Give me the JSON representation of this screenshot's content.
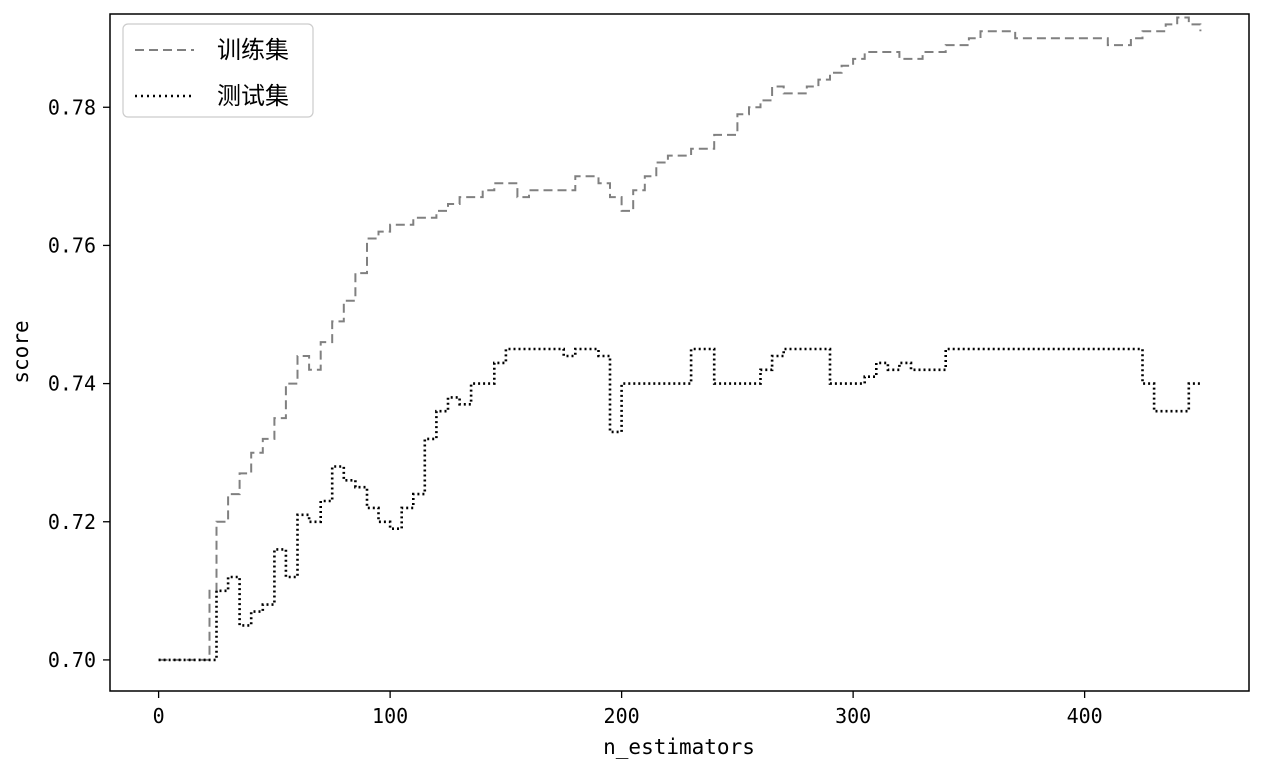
{
  "chart_data": {
    "type": "line",
    "xlabel": "n_estimators",
    "ylabel": "score",
    "xlim": [
      -21,
      471
    ],
    "ylim": [
      0.6955,
      0.7935
    ],
    "xticks": [
      0,
      100,
      200,
      300,
      400
    ],
    "yticks": [
      0.7,
      0.72,
      0.74,
      0.76,
      0.78
    ],
    "ytick_labels": [
      "0.70",
      "0.72",
      "0.74",
      "0.76",
      "0.78"
    ],
    "grid": false,
    "legend_position": "top-left",
    "series": [
      {
        "name": "训练集",
        "style": "dashed",
        "color": "#808080",
        "x": [
          0,
          10,
          19,
          22,
          25,
          30,
          35,
          40,
          45,
          50,
          55,
          60,
          65,
          70,
          75,
          80,
          85,
          90,
          95,
          100,
          110,
          120,
          125,
          130,
          135,
          140,
          145,
          150,
          155,
          160,
          170,
          180,
          185,
          190,
          195,
          200,
          205,
          210,
          215,
          220,
          225,
          230,
          240,
          250,
          255,
          260,
          265,
          270,
          275,
          280,
          285,
          290,
          295,
          300,
          305,
          310,
          315,
          320,
          325,
          330,
          335,
          340,
          345,
          350,
          355,
          360,
          370,
          380,
          390,
          400,
          405,
          410,
          420,
          425,
          430,
          435,
          440,
          445,
          450
        ],
        "y": [
          0.7,
          0.7,
          0.7,
          0.71,
          0.72,
          0.724,
          0.727,
          0.73,
          0.732,
          0.735,
          0.74,
          0.744,
          0.742,
          0.746,
          0.749,
          0.752,
          0.756,
          0.761,
          0.762,
          0.763,
          0.764,
          0.765,
          0.766,
          0.767,
          0.767,
          0.768,
          0.769,
          0.769,
          0.767,
          0.768,
          0.768,
          0.77,
          0.77,
          0.769,
          0.767,
          0.765,
          0.768,
          0.77,
          0.772,
          0.773,
          0.773,
          0.774,
          0.776,
          0.779,
          0.78,
          0.781,
          0.783,
          0.782,
          0.782,
          0.783,
          0.784,
          0.785,
          0.786,
          0.787,
          0.788,
          0.788,
          0.788,
          0.787,
          0.787,
          0.788,
          0.788,
          0.789,
          0.789,
          0.79,
          0.791,
          0.791,
          0.79,
          0.79,
          0.79,
          0.79,
          0.79,
          0.789,
          0.79,
          0.791,
          0.791,
          0.792,
          0.793,
          0.792,
          0.791
        ]
      },
      {
        "name": "测试集",
        "style": "dotted",
        "color": "#000000",
        "x": [
          0,
          10,
          20,
          25,
          30,
          35,
          40,
          45,
          50,
          55,
          60,
          65,
          70,
          75,
          80,
          85,
          90,
          95,
          100,
          105,
          110,
          115,
          120,
          125,
          130,
          135,
          140,
          145,
          150,
          155,
          160,
          170,
          175,
          180,
          185,
          190,
          195,
          200,
          210,
          220,
          225,
          230,
          240,
          250,
          260,
          265,
          270,
          280,
          290,
          300,
          305,
          310,
          315,
          320,
          325,
          330,
          335,
          340,
          350,
          400,
          420,
          425,
          430,
          440,
          445,
          450
        ],
        "y": [
          0.7,
          0.7,
          0.7,
          0.71,
          0.712,
          0.705,
          0.707,
          0.708,
          0.716,
          0.712,
          0.721,
          0.72,
          0.723,
          0.728,
          0.726,
          0.725,
          0.722,
          0.72,
          0.719,
          0.722,
          0.724,
          0.732,
          0.736,
          0.738,
          0.737,
          0.74,
          0.74,
          0.743,
          0.745,
          0.745,
          0.745,
          0.745,
          0.744,
          0.745,
          0.745,
          0.744,
          0.733,
          0.74,
          0.74,
          0.74,
          0.74,
          0.745,
          0.74,
          0.74,
          0.742,
          0.744,
          0.745,
          0.745,
          0.74,
          0.74,
          0.741,
          0.743,
          0.742,
          0.743,
          0.742,
          0.742,
          0.742,
          0.745,
          0.745,
          0.745,
          0.745,
          0.74,
          0.736,
          0.736,
          0.74,
          0.74
        ]
      }
    ]
  }
}
